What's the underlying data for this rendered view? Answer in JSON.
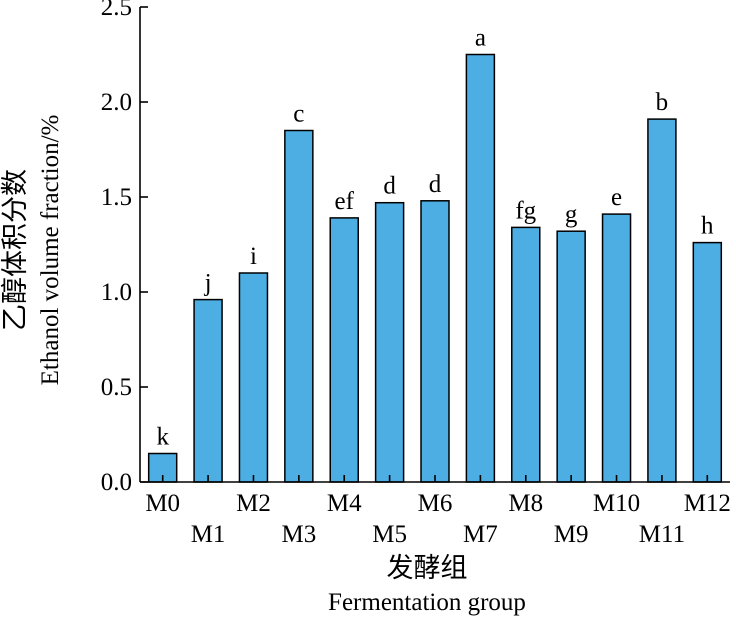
{
  "chart_data": {
    "type": "bar",
    "categories": [
      "M0",
      "M1",
      "M2",
      "M3",
      "M4",
      "M5",
      "M6",
      "M7",
      "M8",
      "M9",
      "M10",
      "M11",
      "M12"
    ],
    "values": [
      0.15,
      0.96,
      1.1,
      1.85,
      1.39,
      1.47,
      1.48,
      2.25,
      1.34,
      1.32,
      1.41,
      1.91,
      1.26
    ],
    "significance_letters": [
      "k",
      "j",
      "i",
      "c",
      "ef",
      "d",
      "d",
      "a",
      "fg",
      "g",
      "e",
      "b",
      "h"
    ],
    "ylabel_cn": "乙醇体积分数",
    "ylabel_en": "Ethanol volume fraction/%",
    "xlabel_cn": "发酵组",
    "xlabel_en": "Fermentation group",
    "ylim": [
      0,
      2.5
    ],
    "yticks": [
      "0.0",
      "0.5",
      "1.0",
      "1.5",
      "2.0",
      "2.5"
    ],
    "grid": false,
    "colors": {
      "bar": "#4daee4",
      "axis": "#000000"
    }
  }
}
